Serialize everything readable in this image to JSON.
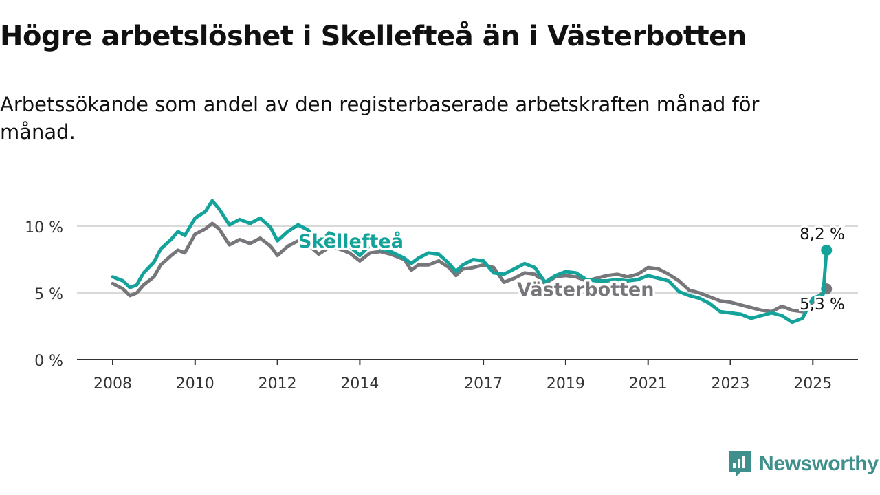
{
  "title": "Högre arbetslöshet i Skellefteå än i Västerbotten",
  "subtitle": "Arbetssökande som andel av den registerbaserade arbetskraften månad för månad.",
  "brand": {
    "name": "Newsworthy",
    "color": "#3f8f8c",
    "icon": "newsworthy-logo-icon"
  },
  "chart_data": {
    "type": "line",
    "title": "Högre arbetslöshet i Skellefteå än i Västerbotten",
    "xlabel": "",
    "ylabel": "",
    "x_ticks": [
      "2008",
      "2010",
      "2012",
      "2014",
      "2017",
      "2019",
      "2021",
      "2023",
      "2025"
    ],
    "y_ticks": [
      "0 %",
      "5 %",
      "10 %"
    ],
    "xlim": [
      "2008-01",
      "2025-12"
    ],
    "ylim": [
      0,
      12
    ],
    "grid": true,
    "series": [
      {
        "name": "Västerbotten",
        "color": "#77777b",
        "end_label": "5,3 %",
        "points": [
          [
            "2008-01",
            5.7
          ],
          [
            "2008-04",
            5.3
          ],
          [
            "2008-06",
            4.8
          ],
          [
            "2008-08",
            5.0
          ],
          [
            "2008-10",
            5.6
          ],
          [
            "2009-01",
            6.2
          ],
          [
            "2009-03",
            7.1
          ],
          [
            "2009-06",
            7.8
          ],
          [
            "2009-08",
            8.2
          ],
          [
            "2009-10",
            8.0
          ],
          [
            "2010-01",
            9.4
          ],
          [
            "2010-04",
            9.8
          ],
          [
            "2010-06",
            10.2
          ],
          [
            "2010-08",
            9.8
          ],
          [
            "2010-11",
            8.6
          ],
          [
            "2011-02",
            9.0
          ],
          [
            "2011-05",
            8.7
          ],
          [
            "2011-08",
            9.1
          ],
          [
            "2011-11",
            8.5
          ],
          [
            "2012-01",
            7.8
          ],
          [
            "2012-04",
            8.5
          ],
          [
            "2012-07",
            8.9
          ],
          [
            "2012-10",
            8.6
          ],
          [
            "2013-01",
            7.9
          ],
          [
            "2013-04",
            8.4
          ],
          [
            "2013-07",
            8.3
          ],
          [
            "2013-10",
            8.0
          ],
          [
            "2014-01",
            7.4
          ],
          [
            "2014-04",
            8.0
          ],
          [
            "2014-07",
            8.1
          ],
          [
            "2014-10",
            7.9
          ],
          [
            "2015-02",
            7.5
          ],
          [
            "2015-04",
            6.7
          ],
          [
            "2015-06",
            7.1
          ],
          [
            "2015-09",
            7.1
          ],
          [
            "2015-12",
            7.4
          ],
          [
            "2016-03",
            6.9
          ],
          [
            "2016-05",
            6.3
          ],
          [
            "2016-07",
            6.8
          ],
          [
            "2016-10",
            6.9
          ],
          [
            "2017-01",
            7.1
          ],
          [
            "2017-04",
            6.9
          ],
          [
            "2017-07",
            5.8
          ],
          [
            "2017-10",
            6.1
          ],
          [
            "2018-01",
            6.5
          ],
          [
            "2018-04",
            6.4
          ],
          [
            "2018-07",
            5.7
          ],
          [
            "2018-10",
            6.2
          ],
          [
            "2019-01",
            6.3
          ],
          [
            "2019-04",
            6.2
          ],
          [
            "2019-07",
            5.9
          ],
          [
            "2019-10",
            6.1
          ],
          [
            "2020-01",
            6.3
          ],
          [
            "2020-04",
            6.4
          ],
          [
            "2020-07",
            6.2
          ],
          [
            "2020-10",
            6.4
          ],
          [
            "2021-01",
            6.9
          ],
          [
            "2021-04",
            6.8
          ],
          [
            "2021-07",
            6.4
          ],
          [
            "2021-10",
            5.9
          ],
          [
            "2022-01",
            5.2
          ],
          [
            "2022-04",
            5.0
          ],
          [
            "2022-07",
            4.7
          ],
          [
            "2022-10",
            4.4
          ],
          [
            "2023-01",
            4.3
          ],
          [
            "2023-04",
            4.1
          ],
          [
            "2023-07",
            3.9
          ],
          [
            "2023-10",
            3.7
          ],
          [
            "2024-01",
            3.6
          ],
          [
            "2024-04",
            4.0
          ],
          [
            "2024-07",
            3.7
          ],
          [
            "2024-10",
            3.6
          ],
          [
            "2025-01",
            4.3
          ],
          [
            "2025-05",
            5.3
          ]
        ]
      },
      {
        "name": "Skellefteå",
        "color": "#14a39a",
        "end_label": "8,2 %",
        "points": [
          [
            "2008-01",
            6.2
          ],
          [
            "2008-04",
            5.9
          ],
          [
            "2008-06",
            5.4
          ],
          [
            "2008-08",
            5.6
          ],
          [
            "2008-10",
            6.5
          ],
          [
            "2009-01",
            7.3
          ],
          [
            "2009-03",
            8.3
          ],
          [
            "2009-06",
            9.0
          ],
          [
            "2009-08",
            9.6
          ],
          [
            "2009-10",
            9.3
          ],
          [
            "2010-01",
            10.6
          ],
          [
            "2010-04",
            11.1
          ],
          [
            "2010-06",
            11.9
          ],
          [
            "2010-08",
            11.3
          ],
          [
            "2010-11",
            10.1
          ],
          [
            "2011-02",
            10.5
          ],
          [
            "2011-05",
            10.2
          ],
          [
            "2011-08",
            10.6
          ],
          [
            "2011-11",
            9.9
          ],
          [
            "2012-01",
            8.9
          ],
          [
            "2012-04",
            9.6
          ],
          [
            "2012-07",
            10.1
          ],
          [
            "2012-10",
            9.7
          ],
          [
            "2013-01",
            8.6
          ],
          [
            "2013-04",
            9.5
          ],
          [
            "2013-07",
            9.2
          ],
          [
            "2013-10",
            8.5
          ],
          [
            "2014-01",
            7.8
          ],
          [
            "2014-04",
            8.6
          ],
          [
            "2014-07",
            8.3
          ],
          [
            "2014-10",
            8.1
          ],
          [
            "2015-02",
            7.6
          ],
          [
            "2015-04",
            7.2
          ],
          [
            "2015-06",
            7.6
          ],
          [
            "2015-09",
            8.0
          ],
          [
            "2015-12",
            7.9
          ],
          [
            "2016-03",
            7.2
          ],
          [
            "2016-05",
            6.6
          ],
          [
            "2016-07",
            7.1
          ],
          [
            "2016-10",
            7.5
          ],
          [
            "2017-01",
            7.4
          ],
          [
            "2017-04",
            6.5
          ],
          [
            "2017-07",
            6.4
          ],
          [
            "2017-10",
            6.8
          ],
          [
            "2018-01",
            7.2
          ],
          [
            "2018-04",
            6.9
          ],
          [
            "2018-07",
            5.8
          ],
          [
            "2018-10",
            6.3
          ],
          [
            "2019-01",
            6.6
          ],
          [
            "2019-04",
            6.5
          ],
          [
            "2019-07",
            6.0
          ],
          [
            "2019-10",
            5.9
          ],
          [
            "2020-01",
            5.9
          ],
          [
            "2020-04",
            6.0
          ],
          [
            "2020-07",
            5.9
          ],
          [
            "2020-10",
            6.0
          ],
          [
            "2021-01",
            6.3
          ],
          [
            "2021-04",
            6.1
          ],
          [
            "2021-07",
            5.9
          ],
          [
            "2021-10",
            5.1
          ],
          [
            "2022-01",
            4.8
          ],
          [
            "2022-04",
            4.6
          ],
          [
            "2022-07",
            4.2
          ],
          [
            "2022-10",
            3.6
          ],
          [
            "2023-01",
            3.5
          ],
          [
            "2023-04",
            3.4
          ],
          [
            "2023-07",
            3.1
          ],
          [
            "2023-10",
            3.3
          ],
          [
            "2024-01",
            3.5
          ],
          [
            "2024-04",
            3.3
          ],
          [
            "2024-07",
            2.8
          ],
          [
            "2024-10",
            3.1
          ],
          [
            "2025-01",
            4.6
          ],
          [
            "2025-04",
            4.9
          ],
          [
            "2025-05",
            8.2
          ]
        ]
      }
    ],
    "series_labels": [
      {
        "series": "Skellefteå",
        "text": "Skellefteå"
      },
      {
        "series": "Västerbotten",
        "text": "Västerbotten"
      }
    ]
  }
}
